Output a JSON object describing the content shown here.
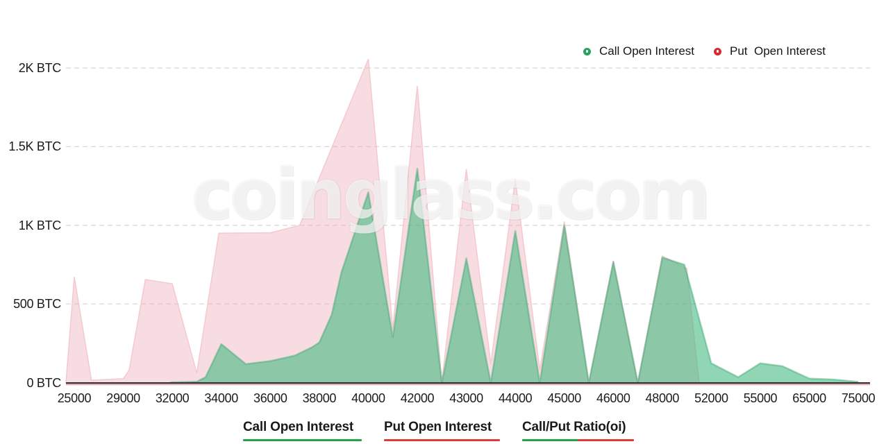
{
  "watermark": "coinglass.com",
  "legend": {
    "items": [
      {
        "label": "Call Open Interest",
        "color": "#27a35f"
      },
      {
        "label": "Put  Open Interest",
        "color": "#d92b2b"
      }
    ]
  },
  "footer_tabs": [
    {
      "label": "Call Open Interest",
      "underline_colors": [
        "#22a54b"
      ]
    },
    {
      "label": "Put Open Interest",
      "underline_colors": [
        "#e03a3a"
      ]
    },
    {
      "label": "Call/Put Ratio(oi)",
      "underline_colors": [
        "#22a54b",
        "#e03a3a"
      ]
    }
  ],
  "chart_data": {
    "type": "area",
    "unit": "BTC",
    "title": "",
    "xlabel": "",
    "ylabel": "",
    "categories": [
      "25000",
      "29000",
      "32000",
      "34000",
      "36000",
      "38000",
      "40000",
      "42000",
      "43000",
      "44000",
      "45000",
      "46000",
      "48000",
      "52000",
      "55000",
      "65000",
      "75000"
    ],
    "y_ticks": [
      {
        "value": 0,
        "label": "0 BTC"
      },
      {
        "value": 500,
        "label": "500 BTC"
      },
      {
        "value": 1000,
        "label": "1K BTC"
      },
      {
        "value": 1500,
        "label": "1.5K BTC"
      },
      {
        "value": 2000,
        "label": "2K BTC"
      }
    ],
    "ylim": [
      0,
      2000
    ],
    "grid": "dashed-horizontal",
    "legend_position": "top-right",
    "axis_color": "#2f2f2f",
    "axis_red_underlay": "rgba(186,74,86,0.45)",
    "gridline_color": "#d8d8d8",
    "note": "profile_points x-coordinates are in category-index units (0 = 25000 ... 16 = 75000); half indices are the zero/low valleys between strikes",
    "series": [
      {
        "name": "Put Open Interest",
        "fill": "rgba(235,165,178,0.38)",
        "stroke": "rgba(244,198,206,0.95)",
        "stroke_width": 1.5,
        "values_at_categories": [
          670,
          25,
          630,
          950,
          950,
          1280,
          2055,
          1885,
          1355,
          1290,
          1022,
          772,
          805,
          0,
          0,
          0,
          0
        ],
        "profile_points": [
          [
            -0.17,
            0
          ],
          [
            0,
            670
          ],
          [
            0.35,
            15
          ],
          [
            1,
            25
          ],
          [
            1.12,
            80
          ],
          [
            1.45,
            655
          ],
          [
            2,
            628
          ],
          [
            2.5,
            60
          ],
          [
            2.95,
            950
          ],
          [
            4,
            952
          ],
          [
            4.6,
            1000
          ],
          [
            6,
            2055
          ],
          [
            6.5,
            340
          ],
          [
            7,
            1885
          ],
          [
            7.5,
            0
          ],
          [
            8,
            1355
          ],
          [
            8.5,
            120
          ],
          [
            9,
            1290
          ],
          [
            9.5,
            80
          ],
          [
            10,
            1022
          ],
          [
            10.5,
            0
          ],
          [
            11,
            772
          ],
          [
            11.5,
            0
          ],
          [
            12,
            805
          ],
          [
            12.5,
            725
          ],
          [
            12.75,
            0
          ],
          [
            16,
            0
          ]
        ]
      },
      {
        "name": "Call Open Interest",
        "fill": "rgba(52,180,120,0.55)",
        "stroke": "rgba(47,160,105,0.40)",
        "stroke_width": 2.5,
        "values_at_categories": [
          0,
          0,
          0,
          245,
          137,
          255,
          1210,
          1360,
          790,
          965,
          1000,
          768,
          795,
          123,
          123,
          26,
          5
        ],
        "profile_points": [
          [
            1.95,
            0
          ],
          [
            2,
            2
          ],
          [
            2.5,
            6
          ],
          [
            2.68,
            35
          ],
          [
            3,
            245
          ],
          [
            3.5,
            118
          ],
          [
            4,
            137
          ],
          [
            4.5,
            172
          ],
          [
            4.85,
            225
          ],
          [
            5,
            255
          ],
          [
            5.25,
            430
          ],
          [
            5.45,
            700
          ],
          [
            6,
            1210
          ],
          [
            6.5,
            290
          ],
          [
            7,
            1360
          ],
          [
            7.5,
            0
          ],
          [
            8,
            790
          ],
          [
            8.5,
            0
          ],
          [
            9,
            965
          ],
          [
            9.5,
            0
          ],
          [
            10,
            1000
          ],
          [
            10.5,
            0
          ],
          [
            11,
            768
          ],
          [
            11.5,
            0
          ],
          [
            12,
            795
          ],
          [
            12.45,
            750
          ],
          [
            13,
            123
          ],
          [
            13.55,
            35
          ],
          [
            14,
            123
          ],
          [
            14.45,
            105
          ],
          [
            15,
            26
          ],
          [
            15.5,
            20
          ],
          [
            16,
            5
          ]
        ]
      }
    ]
  }
}
